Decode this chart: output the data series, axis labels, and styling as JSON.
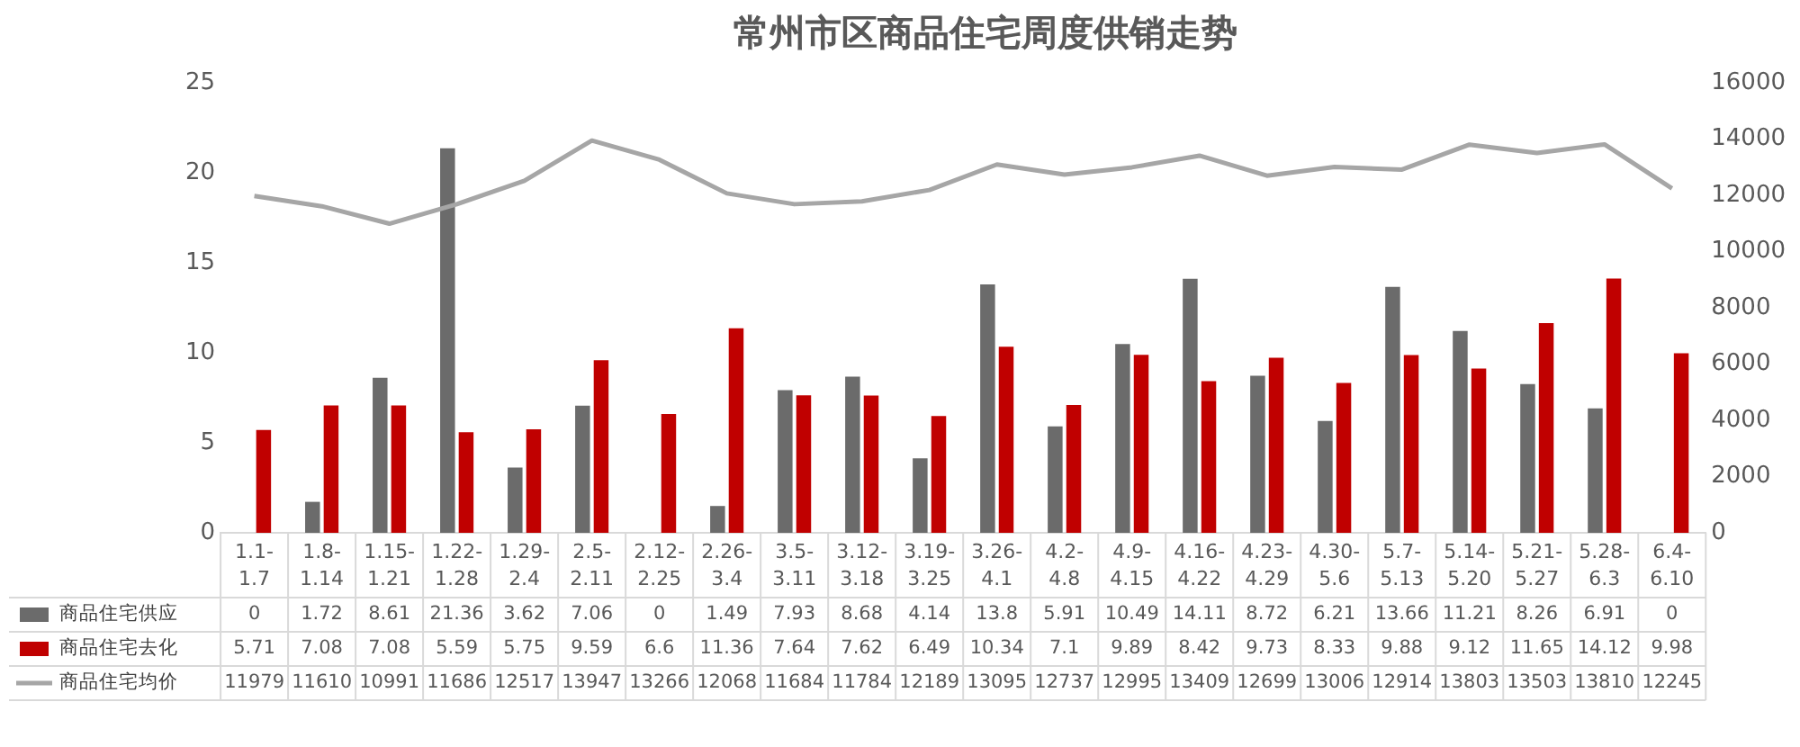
{
  "chart_data": {
    "type": "bar",
    "title": "常州市区商品住宅周度供销走势",
    "categories": [
      "1.1-1.7",
      "1.8-1.14",
      "1.15-1.21",
      "1.22-1.28",
      "1.29-2.4",
      "2.5-2.11",
      "2.12-2.25",
      "2.26-3.4",
      "3.5-3.11",
      "3.12-3.18",
      "3.19-3.25",
      "3.26-4.1",
      "4.2-4.8",
      "4.9-4.15",
      "4.16-4.22",
      "4.23-4.29",
      "4.30-5.6",
      "5.7-5.13",
      "5.14-5.20",
      "5.21-5.27",
      "5.28-6.3",
      "6.4-6.10"
    ],
    "series": [
      {
        "name": "商品住宅供应",
        "color": "#6b6b6b",
        "values": [
          0,
          1.72,
          8.61,
          21.36,
          3.62,
          7.06,
          0,
          1.49,
          7.93,
          8.68,
          4.14,
          13.8,
          5.91,
          10.49,
          14.11,
          8.72,
          6.21,
          13.66,
          11.21,
          8.26,
          6.91,
          0
        ]
      },
      {
        "name": "商品住宅去化",
        "color": "#c00000",
        "values": [
          5.71,
          7.08,
          7.08,
          5.59,
          5.75,
          9.59,
          6.6,
          11.36,
          7.64,
          7.62,
          6.49,
          10.34,
          7.1,
          9.89,
          8.42,
          9.73,
          8.33,
          9.88,
          9.12,
          11.65,
          14.12,
          9.98
        ]
      },
      {
        "name": "商品住宅均价",
        "type": "line",
        "axis": "y2",
        "color": "#a6a6a6",
        "values": [
          11979,
          11610,
          10991,
          11686,
          12517,
          13947,
          13266,
          12068,
          11684,
          11784,
          12189,
          13095,
          12737,
          12995,
          13409,
          12699,
          13006,
          12914,
          13803,
          13503,
          13810,
          12245
        ]
      }
    ],
    "ylim": [
      0,
      25
    ],
    "yticks": [
      0,
      5,
      10,
      15,
      20,
      25
    ],
    "y2lim": [
      0,
      16000
    ],
    "y2ticks": [
      0,
      2000,
      4000,
      6000,
      8000,
      10000,
      12000,
      14000,
      16000
    ],
    "data_labels": true,
    "legend": "bottom"
  }
}
